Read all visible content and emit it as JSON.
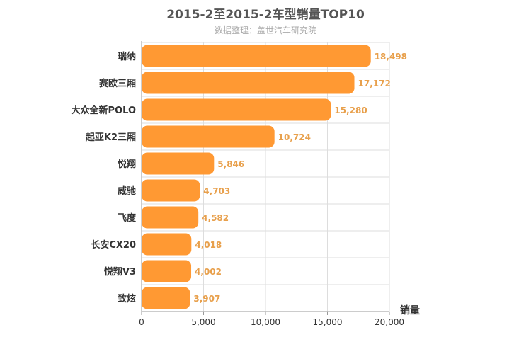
{
  "chart_data": {
    "type": "bar",
    "orientation": "horizontal",
    "title": "2015-2至2015-2车型销量TOP10",
    "subtitle": "数据整理：盖世汽车研究院",
    "categories": [
      "瑞纳",
      "赛欧三厢",
      "大众全新POLO",
      "起亚K2三厢",
      "悦翔",
      "威驰",
      "飞度",
      "长安CX20",
      "悦翔V3",
      "致炫"
    ],
    "values": [
      18498,
      17172,
      15280,
      10724,
      5846,
      4703,
      4582,
      4018,
      4002,
      3907
    ],
    "value_labels": [
      "18,498",
      "17,172",
      "15,280",
      "10,724",
      "5,846",
      "4,703",
      "4,582",
      "4,018",
      "4,002",
      "3,907"
    ],
    "xlabel": "销量",
    "ylabel": "",
    "xlim": [
      0,
      20000
    ],
    "xticks": [
      0,
      5000,
      10000,
      15000,
      20000
    ],
    "xtick_labels": [
      "0",
      "5,000",
      "10,000",
      "15,000",
      "20,000"
    ],
    "grid": true,
    "legend": "none",
    "colors": {
      "bar": "#ff9933",
      "value_label": "#e8a04c",
      "grid": "#dddddd",
      "axis": "#999999"
    }
  }
}
